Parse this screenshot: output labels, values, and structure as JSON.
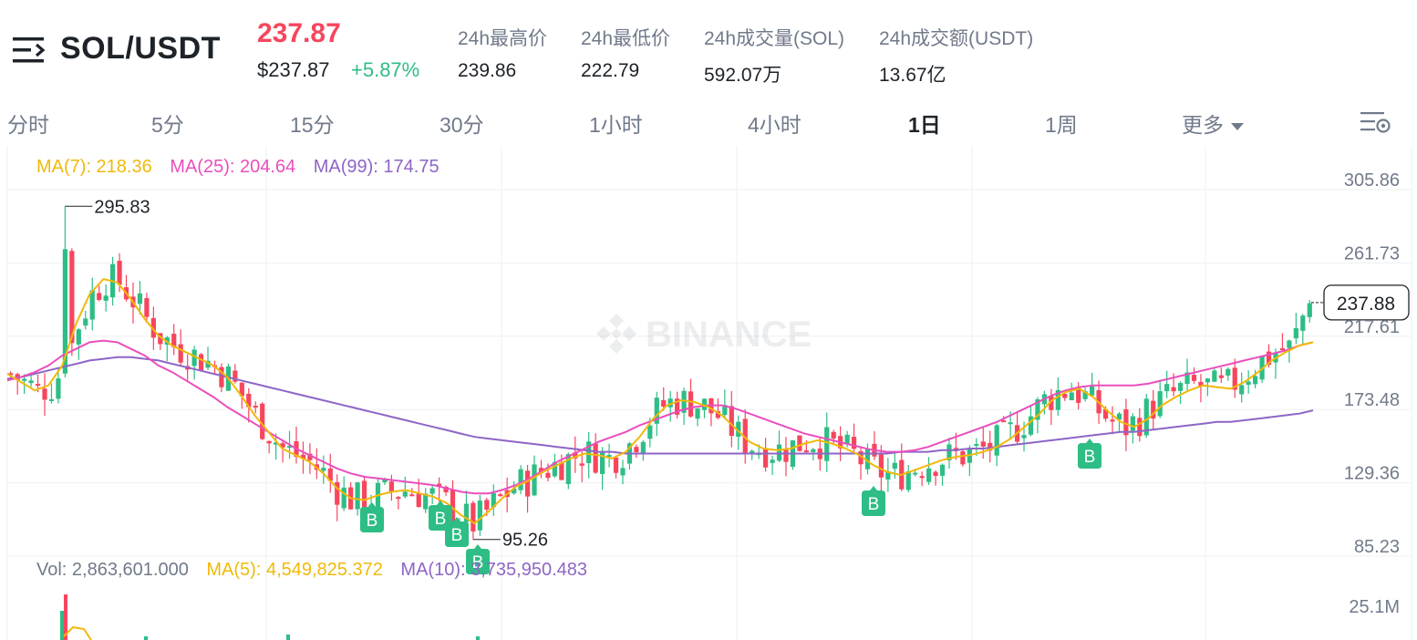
{
  "header": {
    "pair": "SOL/USDT",
    "last_price": "237.87",
    "last_price_usd": "$237.87",
    "change_pct": "+5.87%",
    "stats": [
      {
        "label": "24h最高价",
        "value": "239.86"
      },
      {
        "label": "24h最低价",
        "value": "222.79"
      },
      {
        "label": "24h成交量(SOL)",
        "value": "592.07万"
      },
      {
        "label": "24h成交额(USDT)",
        "value": "13.67亿"
      }
    ]
  },
  "tabs": [
    {
      "label": "分时"
    },
    {
      "label": "5分"
    },
    {
      "label": "15分"
    },
    {
      "label": "30分"
    },
    {
      "label": "1小时"
    },
    {
      "label": "4小时"
    },
    {
      "label": "1日",
      "active": true
    },
    {
      "label": "1周"
    },
    {
      "label": "更多"
    }
  ],
  "legend": {
    "ma7": "MA(7): 218.36",
    "ma25": "MA(25): 204.64",
    "ma99": "MA(99): 174.75"
  },
  "volume_legend": {
    "vol": "Vol: 2,863,601.000",
    "ma5": "MA(5): 4,549,825.372",
    "ma10": "MA(10): 3,735,950.483"
  },
  "watermark": "BINANCE",
  "price_axis": [
    "305.86",
    "261.73",
    "217.61",
    "173.48",
    "129.36",
    "85.23"
  ],
  "volume_axis": [
    "25.1M"
  ],
  "current_price_tag": "237.88",
  "annotations": {
    "high": "295.83",
    "low": "95.26"
  },
  "buy_marker_label": "B",
  "colors": {
    "up": "#2ebd85",
    "down": "#f6465d",
    "ma7": "#f0b90b",
    "ma25": "#e94fbd",
    "ma99": "#8e65c6",
    "text": "#1e2329",
    "muted": "#707a8a"
  },
  "chart_data": {
    "type": "candlestick",
    "ylim": [
      85.23,
      305.86
    ],
    "highest_marked": 295.83,
    "lowest_marked": 95.26,
    "current": 237.88,
    "ma7_series": [
      195,
      190,
      185,
      188,
      200,
      225,
      243,
      252,
      250,
      240,
      228,
      218,
      212,
      208,
      204,
      200,
      193,
      182,
      170,
      160,
      150,
      146,
      142,
      135,
      126,
      120,
      119,
      122,
      124,
      125,
      123,
      121,
      117,
      110,
      105,
      112,
      120,
      127,
      131,
      136,
      140,
      144,
      147,
      146,
      144,
      148,
      157,
      168,
      176,
      179,
      178,
      175,
      170,
      162,
      154,
      150,
      149,
      150,
      153,
      155,
      153,
      150,
      146,
      140,
      136,
      134,
      137,
      140,
      143,
      145,
      146,
      148,
      151,
      156,
      163,
      170,
      179,
      184,
      186,
      181,
      173,
      166,
      163,
      168,
      176,
      181,
      185,
      188,
      187,
      186,
      190,
      196,
      203,
      208,
      212,
      214
    ],
    "ma25_series": [
      191,
      193,
      196,
      200,
      206,
      210,
      214,
      215,
      214,
      210,
      206,
      200,
      196,
      191,
      186,
      181,
      175,
      170,
      165,
      160,
      155,
      150,
      146,
      142,
      138,
      135,
      133,
      132,
      131,
      130,
      129,
      128,
      126,
      124,
      123,
      123,
      125,
      128,
      132,
      137,
      142,
      146,
      150,
      154,
      157,
      160,
      164,
      167,
      170,
      173,
      175,
      176,
      176,
      174,
      171,
      168,
      165,
      162,
      159,
      157,
      155,
      153,
      151,
      149,
      148,
      148,
      149,
      151,
      154,
      157,
      160,
      163,
      166,
      170,
      174,
      178,
      182,
      185,
      187,
      188,
      188,
      188,
      188,
      189,
      191,
      193,
      195,
      197,
      199,
      201,
      203,
      205,
      207,
      209,
      212,
      214
    ],
    "ma99_series": [
      192,
      193,
      195,
      197,
      199,
      201,
      203,
      204,
      205,
      205,
      204,
      203,
      201,
      199,
      197,
      195,
      193,
      191,
      189,
      187,
      185,
      183,
      181,
      179,
      177,
      175,
      173,
      171,
      169,
      167,
      165,
      163,
      161,
      159,
      157,
      156,
      155,
      154,
      153,
      152,
      151,
      150,
      149,
      148,
      148,
      147,
      147,
      147,
      147,
      147,
      147,
      147,
      147,
      147,
      147,
      147,
      147,
      147,
      147,
      147,
      147,
      147,
      147,
      147,
      147,
      148,
      148,
      148,
      149,
      149,
      150,
      150,
      151,
      152,
      153,
      154,
      155,
      156,
      157,
      158,
      159,
      160,
      160,
      161,
      162,
      163,
      164,
      165,
      166,
      166,
      167,
      168,
      169,
      170,
      171,
      173
    ]
  }
}
